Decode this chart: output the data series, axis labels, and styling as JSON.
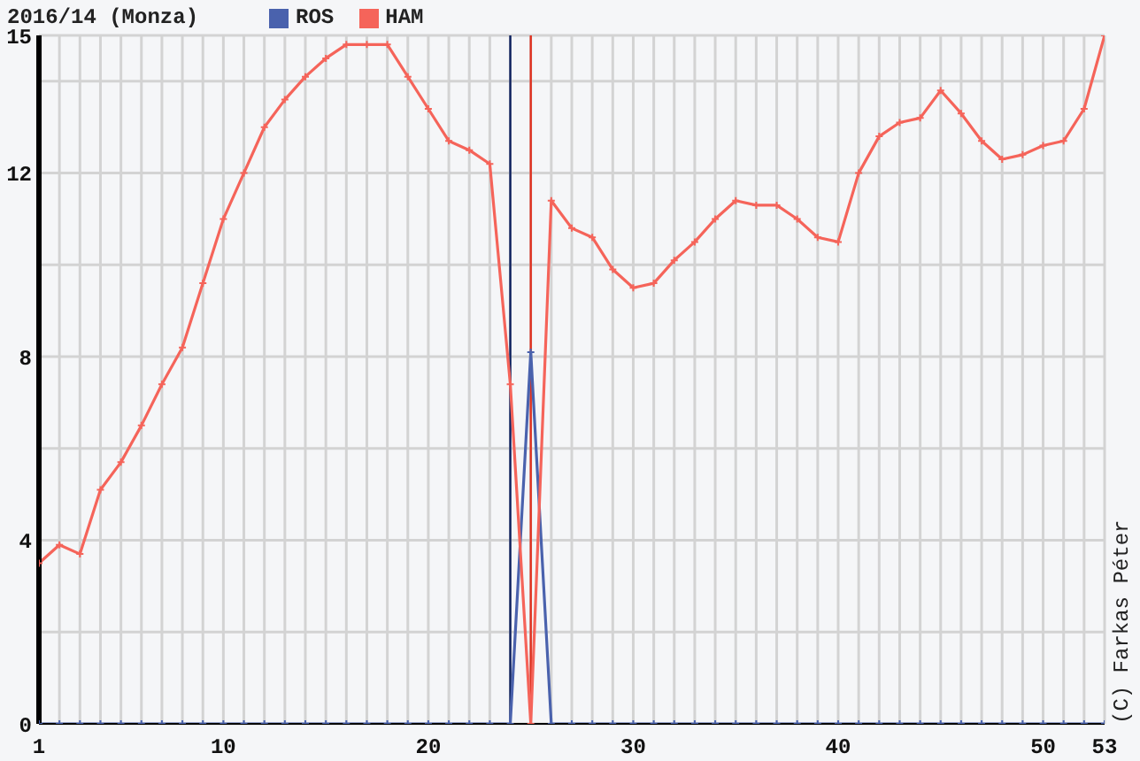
{
  "chart_data": {
    "type": "line",
    "title": "2016/14 (Monza)",
    "x": [
      1,
      2,
      3,
      4,
      5,
      6,
      7,
      8,
      9,
      10,
      11,
      12,
      13,
      14,
      15,
      16,
      17,
      18,
      19,
      20,
      21,
      22,
      23,
      24,
      25,
      26,
      27,
      28,
      29,
      30,
      31,
      32,
      33,
      34,
      35,
      36,
      37,
      38,
      39,
      40,
      41,
      42,
      43,
      44,
      45,
      46,
      47,
      48,
      49,
      50,
      51,
      52,
      53
    ],
    "series": [
      {
        "name": "ROS",
        "color": "#4a62ad",
        "values": [
          0,
          0,
          0,
          0,
          0,
          0,
          0,
          0,
          0,
          0,
          0,
          0,
          0,
          0,
          0,
          0,
          0,
          0,
          0,
          0,
          0,
          0,
          0,
          0,
          8.1,
          0,
          0,
          0,
          0,
          0,
          0,
          0,
          0,
          0,
          0,
          0,
          0,
          0,
          0,
          0,
          0,
          0,
          0,
          0,
          0,
          0,
          0,
          0,
          0,
          0,
          0,
          0,
          0
        ]
      },
      {
        "name": "HAM",
        "color": "#f5645a",
        "values": [
          3.5,
          3.9,
          3.7,
          5.1,
          5.7,
          6.5,
          7.4,
          8.2,
          9.6,
          11.0,
          12.0,
          13.0,
          13.6,
          14.1,
          14.5,
          14.8,
          14.8,
          14.8,
          14.1,
          13.4,
          12.7,
          12.5,
          12.2,
          7.4,
          0,
          11.4,
          10.8,
          10.6,
          9.9,
          9.5,
          9.6,
          10.1,
          10.5,
          11.0,
          11.4,
          11.3,
          11.3,
          11.0,
          10.6,
          10.5,
          12.0,
          12.8,
          13.1,
          13.2,
          13.8,
          13.3,
          12.7,
          12.3,
          12.4,
          12.6,
          12.7,
          13.4,
          15
        ]
      }
    ],
    "xlim": [
      1,
      53
    ],
    "xticks": [
      1,
      {
        "value": 2,
        "label": null
      },
      {
        "value": 3,
        "label": null
      },
      {
        "value": 4,
        "label": null
      },
      {
        "value": 5,
        "label": null
      },
      {
        "value": 6,
        "label": null
      },
      {
        "value": 7,
        "label": null
      },
      {
        "value": 8,
        "label": null
      },
      {
        "value": 9,
        "label": null
      },
      10,
      {
        "value": 11,
        "label": null
      },
      {
        "value": 12,
        "label": null
      },
      {
        "value": 13,
        "label": null
      },
      {
        "value": 14,
        "label": null
      },
      {
        "value": 15,
        "label": null
      },
      {
        "value": 16,
        "label": null
      },
      {
        "value": 17,
        "label": null
      },
      {
        "value": 18,
        "label": null
      },
      {
        "value": 19,
        "label": null
      },
      20,
      {
        "value": 21,
        "label": null
      },
      {
        "value": 22,
        "label": null
      },
      {
        "value": 23,
        "label": null
      },
      {
        "value": 24,
        "label": null
      },
      {
        "value": 25,
        "label": null
      },
      {
        "value": 26,
        "label": null
      },
      {
        "value": 27,
        "label": null
      },
      {
        "value": 28,
        "label": null
      },
      {
        "value": 29,
        "label": null
      },
      30,
      {
        "value": 31,
        "label": null
      },
      {
        "value": 32,
        "label": null
      },
      {
        "value": 33,
        "label": null
      },
      {
        "value": 34,
        "label": null
      },
      {
        "value": 35,
        "label": null
      },
      {
        "value": 36,
        "label": null
      },
      {
        "value": 37,
        "label": null
      },
      {
        "value": 38,
        "label": null
      },
      {
        "value": 39,
        "label": null
      },
      40,
      {
        "value": 41,
        "label": null
      },
      {
        "value": 42,
        "label": null
      },
      {
        "value": 43,
        "label": null
      },
      {
        "value": 44,
        "label": null
      },
      {
        "value": 45,
        "label": null
      },
      {
        "value": 46,
        "label": null
      },
      {
        "value": 47,
        "label": null
      },
      {
        "value": 48,
        "label": null
      },
      {
        "value": 49,
        "label": null
      },
      50,
      {
        "value": 51,
        "label": null
      },
      {
        "value": 52,
        "label": null
      },
      53
    ],
    "ylim": [
      0,
      15
    ],
    "yticks": [
      0,
      {
        "value": 2,
        "label": null
      },
      4,
      {
        "value": 6,
        "label": null
      },
      8,
      {
        "value": 10,
        "label": null
      },
      12,
      {
        "value": 14,
        "label": null
      },
      15
    ],
    "ref_lines": [
      {
        "axis": "x",
        "value": 24,
        "color": "#0b1f5e"
      },
      {
        "axis": "x",
        "value": 25,
        "color": "#e0301e"
      }
    ],
    "grid": true,
    "legend": "top",
    "marker": "cross",
    "line_style": "solid",
    "annotations": [
      "(C) Farkas Péter"
    ]
  }
}
